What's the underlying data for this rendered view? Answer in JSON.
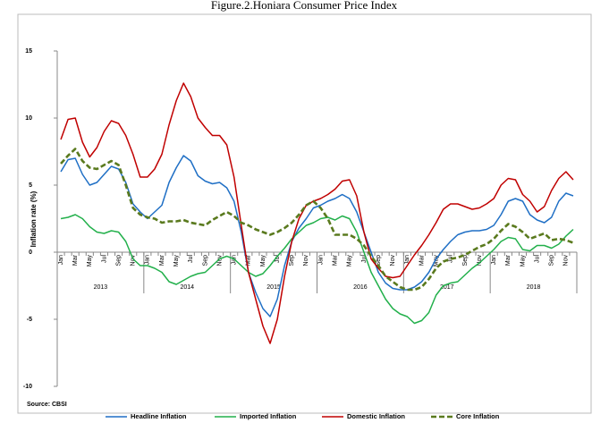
{
  "chart_data": {
    "type": "line",
    "title": "Figure.2.Honiara Consumer Price Index",
    "y_label": "Inflation rate (%)",
    "source": "Source: CBSI",
    "categories": [
      "Jan",
      null,
      "Mar",
      null,
      "May",
      null,
      "Jul",
      null,
      "Sep",
      null,
      "Nov",
      null,
      "Jan",
      null,
      "Mar",
      null,
      "May",
      null,
      "Jul",
      null,
      "Sep",
      null,
      "Nov",
      null,
      "Jan",
      null,
      "Mar",
      null,
      "May",
      null,
      "Jul",
      null,
      "Sep",
      null,
      "Nov",
      null,
      "Jan",
      null,
      "Mar",
      null,
      "May",
      null,
      "Jul",
      null,
      "Sep",
      null,
      "Nov",
      null,
      "Jan",
      null,
      "Mar",
      null,
      "May",
      null,
      "Jul",
      null,
      "Sep",
      null,
      "Nov",
      null,
      "Jan",
      null,
      "Mar",
      null,
      "May",
      null,
      "Jul",
      null,
      "Sep",
      null,
      "Nov",
      null
    ],
    "years": [
      "2013",
      "2014",
      "2015",
      "2016",
      "2017",
      "2018"
    ],
    "ylim": [
      -10,
      15
    ],
    "yticks": [
      -10,
      -5,
      0,
      5,
      10,
      15
    ],
    "grid": false,
    "legend": "bottom",
    "series": [
      {
        "name": "Headline Inflation",
        "color": "#1f6fc5",
        "dashed": false,
        "values": [
          6.0,
          6.9,
          7.0,
          5.8,
          5.0,
          5.2,
          5.8,
          6.4,
          6.2,
          5.2,
          3.6,
          3.0,
          2.5,
          3.0,
          3.5,
          5.2,
          6.3,
          7.2,
          6.8,
          5.7,
          5.3,
          5.1,
          5.2,
          4.8,
          3.8,
          1.5,
          -1.5,
          -3.0,
          -4.2,
          -4.8,
          -3.5,
          -1.0,
          0.8,
          1.8,
          2.5,
          3.3,
          3.5,
          3.8,
          4.0,
          4.3,
          4.0,
          3.0,
          1.5,
          0.0,
          -1.5,
          -2.3,
          -2.7,
          -2.8,
          -2.8,
          -2.6,
          -2.2,
          -1.5,
          -0.5,
          0.2,
          0.8,
          1.3,
          1.5,
          1.6,
          1.6,
          1.7,
          2.0,
          2.8,
          3.8,
          4.0,
          3.8,
          2.8,
          2.4,
          2.2,
          2.6,
          3.8,
          4.4,
          4.2
        ]
      },
      {
        "name": "Imported Inflation",
        "color": "#22b04b",
        "dashed": false,
        "values": [
          2.5,
          2.6,
          2.8,
          2.5,
          1.9,
          1.5,
          1.4,
          1.6,
          1.5,
          0.8,
          -0.5,
          -1.0,
          -1.0,
          -1.2,
          -1.5,
          -2.2,
          -2.4,
          -2.1,
          -1.8,
          -1.6,
          -1.5,
          -1.0,
          -0.5,
          -0.3,
          -0.5,
          -1.0,
          -1.5,
          -1.8,
          -1.6,
          -1.0,
          -0.3,
          0.3,
          1.0,
          1.5,
          2.0,
          2.2,
          2.5,
          2.6,
          2.4,
          2.7,
          2.5,
          1.5,
          0.0,
          -1.5,
          -2.5,
          -3.5,
          -4.2,
          -4.6,
          -4.8,
          -5.3,
          -5.1,
          -4.5,
          -3.2,
          -2.5,
          -2.3,
          -2.2,
          -1.7,
          -1.2,
          -0.8,
          -0.3,
          0.2,
          0.8,
          1.1,
          1.0,
          0.2,
          0.1,
          0.5,
          0.5,
          0.3,
          0.6,
          1.2,
          1.7
        ]
      },
      {
        "name": "Domestic Inflation",
        "color": "#c00000",
        "dashed": false,
        "values": [
          8.4,
          9.9,
          10.0,
          8.2,
          7.1,
          7.8,
          9.0,
          9.8,
          9.6,
          8.7,
          7.3,
          5.6,
          5.6,
          6.2,
          7.3,
          9.5,
          11.3,
          12.6,
          11.6,
          10.0,
          9.3,
          8.7,
          8.7,
          8.0,
          5.6,
          2.0,
          -1.5,
          -3.5,
          -5.5,
          -6.8,
          -5.0,
          -1.8,
          0.8,
          2.5,
          3.5,
          3.8,
          4.0,
          4.3,
          4.7,
          5.3,
          5.4,
          4.2,
          1.5,
          -0.5,
          -1.2,
          -1.8,
          -1.9,
          -1.8,
          -1.0,
          -0.2,
          0.5,
          1.3,
          2.2,
          3.2,
          3.6,
          3.6,
          3.4,
          3.2,
          3.3,
          3.6,
          4.0,
          5.0,
          5.5,
          5.4,
          4.3,
          3.8,
          3.0,
          3.4,
          4.6,
          5.5,
          6.0,
          5.4
        ]
      },
      {
        "name": "Core Inflation",
        "color": "#5a7a1e",
        "dashed": true,
        "values": [
          6.6,
          7.2,
          7.7,
          6.8,
          6.3,
          6.2,
          6.5,
          6.8,
          6.5,
          5.0,
          3.3,
          2.8,
          2.6,
          2.5,
          2.2,
          2.3,
          2.3,
          2.4,
          2.2,
          2.1,
          2.0,
          2.4,
          2.7,
          3.0,
          2.7,
          2.2,
          2.0,
          1.7,
          1.5,
          1.3,
          1.5,
          1.8,
          2.2,
          2.8,
          3.5,
          3.8,
          3.3,
          2.5,
          1.3,
          1.3,
          1.3,
          1.0,
          0.5,
          -0.3,
          -1.0,
          -1.8,
          -2.2,
          -2.6,
          -2.8,
          -2.8,
          -2.6,
          -2.0,
          -1.2,
          -0.7,
          -0.5,
          -0.4,
          -0.2,
          0.1,
          0.4,
          0.6,
          1.0,
          1.6,
          2.1,
          1.9,
          1.5,
          1.0,
          1.2,
          1.4,
          0.9,
          1.0,
          0.9,
          0.7
        ]
      }
    ]
  }
}
